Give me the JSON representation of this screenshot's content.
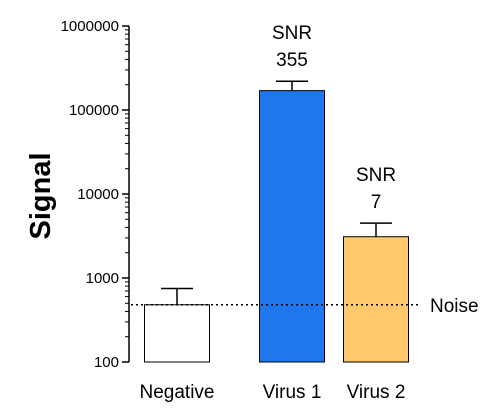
{
  "chart_data": {
    "type": "bar",
    "ylabel": "Signal",
    "xlabel": "",
    "yscale": "log",
    "ylim": [
      100,
      1000000
    ],
    "yticks": [
      "1000000",
      "100000",
      "10000",
      "1000",
      "100"
    ],
    "categories": [
      "Negative",
      "Virus 1",
      "Virus 2"
    ],
    "values": [
      480,
      170000,
      3100
    ],
    "error_upper": [
      750,
      220000,
      4500
    ],
    "bar_colors": [
      "#ffffff",
      "#1f77f0",
      "#ffc96b"
    ],
    "annotations": [
      {
        "category": "Virus 1",
        "line1": "SNR",
        "line2": "355"
      },
      {
        "category": "Virus 2",
        "line1": "SNR",
        "line2": "7"
      }
    ],
    "reference_line": {
      "value": 480,
      "label": "Noise",
      "style": "dotted"
    },
    "grid": false
  }
}
